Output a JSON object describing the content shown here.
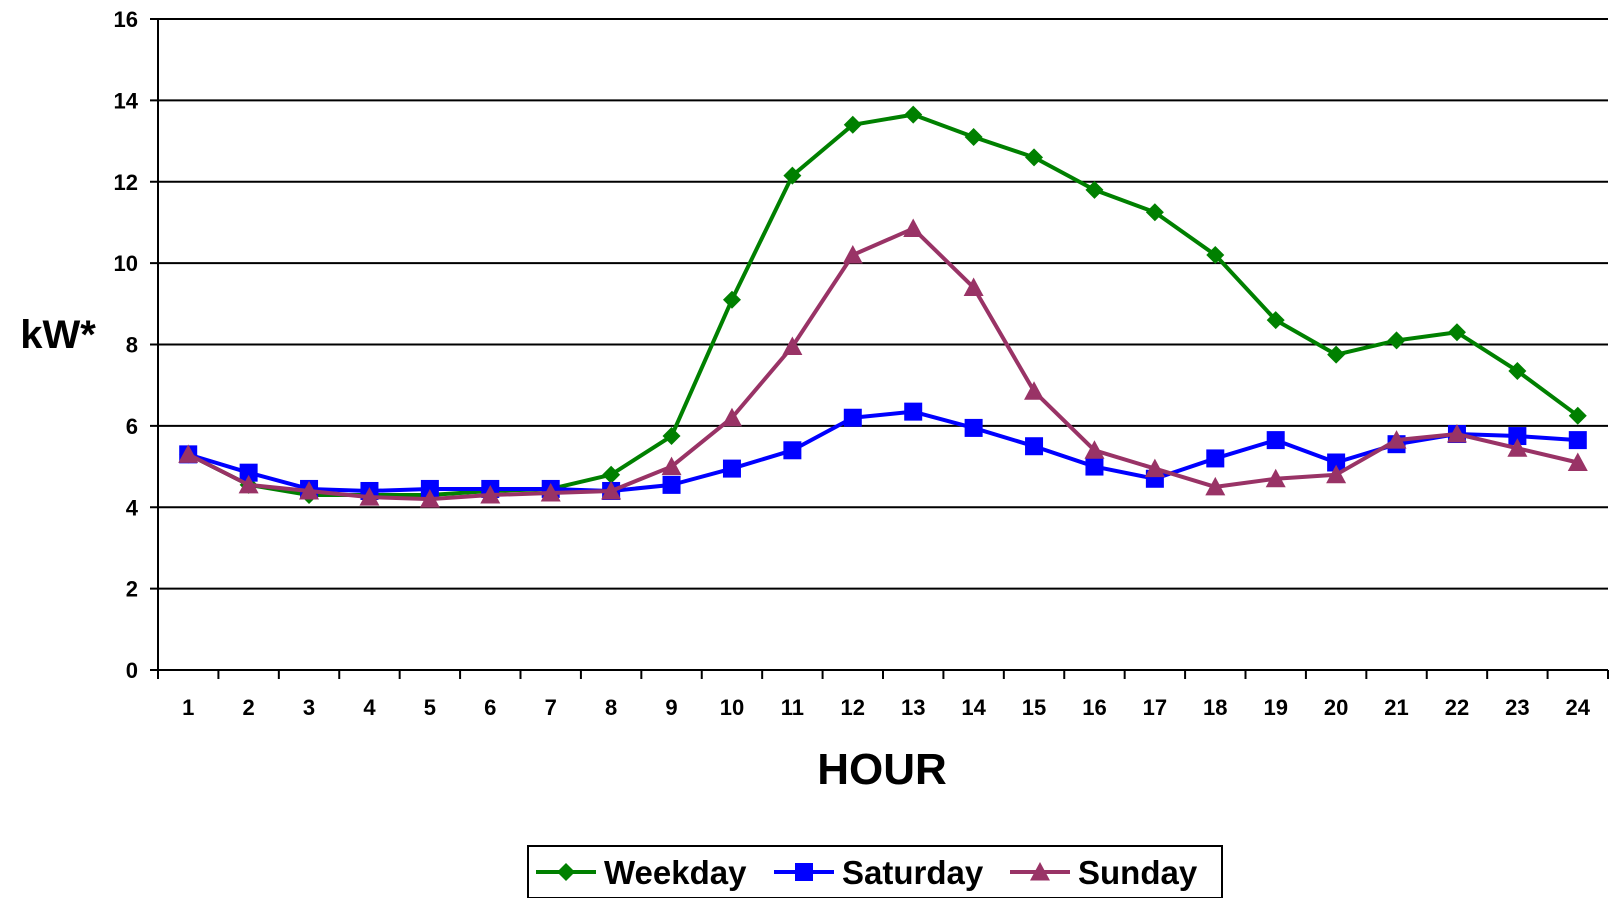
{
  "chart_data": {
    "type": "line",
    "title": "",
    "xlabel": "HOUR",
    "ylabel": "kW*",
    "categories": [
      "1",
      "2",
      "3",
      "4",
      "5",
      "6",
      "7",
      "8",
      "9",
      "10",
      "11",
      "12",
      "13",
      "14",
      "15",
      "16",
      "17",
      "18",
      "19",
      "20",
      "21",
      "22",
      "23",
      "24"
    ],
    "yticks": [
      "0",
      "2",
      "4",
      "6",
      "8",
      "10",
      "12",
      "14",
      "16"
    ],
    "ylim": [
      0,
      16
    ],
    "grid": "horizontal",
    "legend_position": "bottom",
    "series": [
      {
        "name": "Weekday",
        "color": "#008000",
        "marker": "diamond",
        "values": [
          5.3,
          4.55,
          4.3,
          4.3,
          4.3,
          4.4,
          4.45,
          4.8,
          5.75,
          9.1,
          12.15,
          13.4,
          13.65,
          13.1,
          12.6,
          11.8,
          11.25,
          10.2,
          8.6,
          7.75,
          8.1,
          8.3,
          7.35,
          6.25
        ]
      },
      {
        "name": "Saturday",
        "color": "#0000ff",
        "marker": "square",
        "values": [
          5.3,
          4.85,
          4.45,
          4.4,
          4.45,
          4.45,
          4.45,
          4.4,
          4.55,
          4.95,
          5.4,
          6.2,
          6.35,
          5.95,
          5.5,
          5.0,
          4.7,
          5.2,
          5.65,
          5.1,
          5.55,
          5.8,
          5.75,
          5.65
        ]
      },
      {
        "name": "Sunday",
        "color": "#993366",
        "marker": "triangle",
        "values": [
          5.3,
          4.55,
          4.4,
          4.25,
          4.2,
          4.3,
          4.35,
          4.4,
          5.0,
          6.2,
          7.95,
          10.2,
          10.85,
          9.4,
          6.85,
          5.4,
          4.95,
          4.5,
          4.7,
          4.8,
          5.65,
          5.8,
          5.45,
          5.1
        ]
      }
    ]
  }
}
